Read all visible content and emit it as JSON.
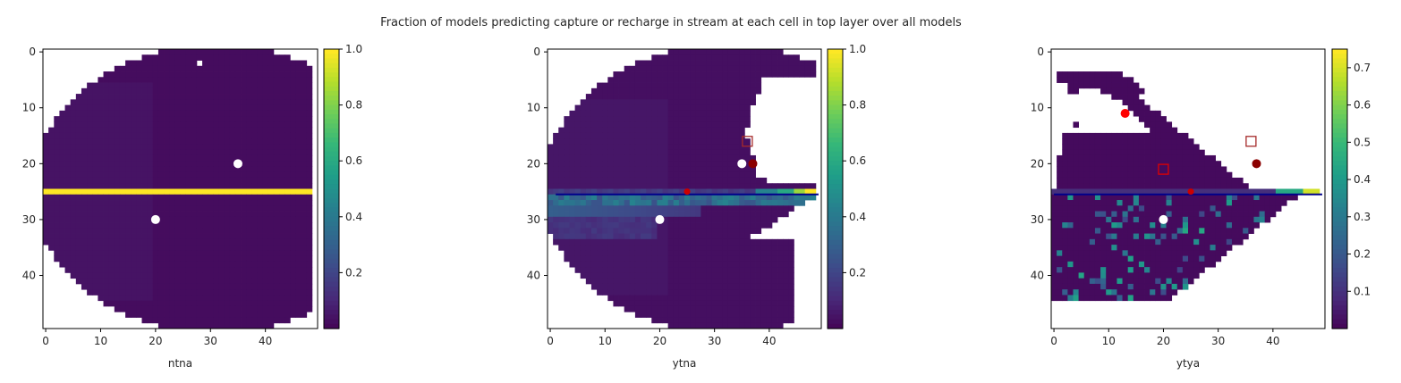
{
  "figure": {
    "title": "Fraction of models predicting capture or recharge in stream at each cell in top layer over all models"
  },
  "chart_data": [
    {
      "type": "heatmap",
      "xlabel": "ntna",
      "ylabel": "",
      "grid": false,
      "colormap": "viridis",
      "xlim": [
        -0.5,
        49.5
      ],
      "ylim": [
        49.5,
        -0.5
      ],
      "xticks": [
        0,
        10,
        20,
        30,
        40
      ],
      "yticks": [
        0,
        10,
        20,
        30,
        40
      ],
      "colorbar": {
        "range": [
          0.0,
          1.0
        ],
        "ticks": [
          0.2,
          0.4,
          0.6,
          0.8,
          1.0
        ]
      },
      "cells": [
        {
          "rows": [
            0,
            50
          ],
          "value": 0.03,
          "shape": "ellipse"
        },
        {
          "rows": [
            25,
            25
          ],
          "value": 1.0,
          "note_cols": [
            0,
            49
          ]
        }
      ],
      "markers": [
        {
          "x": 35,
          "y": 20,
          "color": "#ffffff",
          "shape": "circle"
        },
        {
          "x": 20,
          "y": 30,
          "color": "#ffffff",
          "shape": "circle"
        }
      ],
      "lines": []
    },
    {
      "type": "heatmap",
      "xlabel": "ytna",
      "ylabel": "",
      "grid": false,
      "colormap": "viridis",
      "xlim": [
        -0.5,
        49.5
      ],
      "ylim": [
        49.5,
        -0.5
      ],
      "xticks": [
        0,
        10,
        20,
        30,
        40
      ],
      "yticks": [
        0,
        10,
        20,
        30,
        40
      ],
      "colorbar": {
        "range": [
          0.0,
          1.0
        ],
        "ticks": [
          0.2,
          0.4,
          0.6,
          0.8,
          1.0
        ]
      },
      "stream_row_values": [
        {
          "cols": [
            38,
            42
          ],
          "value": 0.45
        },
        {
          "cols": [
            42,
            45
          ],
          "value": 0.6
        },
        {
          "cols": [
            45,
            47
          ],
          "value": 0.85
        },
        {
          "cols": [
            47,
            49
          ],
          "value": 1.0
        }
      ],
      "markers": [
        {
          "x": 35,
          "y": 20,
          "color": "#ffffff",
          "shape": "circle"
        },
        {
          "x": 20,
          "y": 30,
          "color": "#ffffff",
          "shape": "circle"
        },
        {
          "x": 37,
          "y": 20,
          "color": "#8b0000",
          "shape": "circle"
        },
        {
          "x": 25,
          "y": 25,
          "color": "#cc0000",
          "shape": "circle-small"
        },
        {
          "x": 36,
          "y": 16,
          "color": "#a52a2a",
          "shape": "square-open"
        }
      ],
      "lines": [
        {
          "x": [
            1,
            49
          ],
          "y": [
            25.5,
            25.5
          ],
          "color": "#00008b"
        }
      ]
    },
    {
      "type": "heatmap",
      "xlabel": "ytya",
      "ylabel": "",
      "grid": false,
      "colormap": "viridis",
      "xlim": [
        -0.5,
        49.5
      ],
      "ylim": [
        49.5,
        -0.5
      ],
      "xticks": [
        0,
        10,
        20,
        30,
        40
      ],
      "yticks": [
        0,
        10,
        20,
        30,
        40
      ],
      "colorbar": {
        "range": [
          0.0,
          0.75
        ],
        "ticks": [
          0.1,
          0.2,
          0.3,
          0.4,
          0.5,
          0.6,
          0.7
        ]
      },
      "stream_row_values": [
        {
          "cols": [
            41,
            46
          ],
          "value": 0.45
        },
        {
          "cols": [
            46,
            48
          ],
          "value": 0.7
        }
      ],
      "markers": [
        {
          "x": 13,
          "y": 11,
          "color": "#ff0000",
          "shape": "circle"
        },
        {
          "x": 37,
          "y": 20,
          "color": "#8b0000",
          "shape": "circle"
        },
        {
          "x": 20,
          "y": 30,
          "color": "#ffffff",
          "shape": "circle"
        },
        {
          "x": 25,
          "y": 25,
          "color": "#cc0000",
          "shape": "circle-small"
        },
        {
          "x": 36,
          "y": 16,
          "color": "#a52a2a",
          "shape": "square-open"
        },
        {
          "x": 20,
          "y": 21,
          "color": "#e00000",
          "shape": "square-open"
        }
      ],
      "lines": [
        {
          "x": [
            0,
            49
          ],
          "y": [
            25.5,
            25.5
          ],
          "color": "#00008b"
        }
      ]
    }
  ]
}
